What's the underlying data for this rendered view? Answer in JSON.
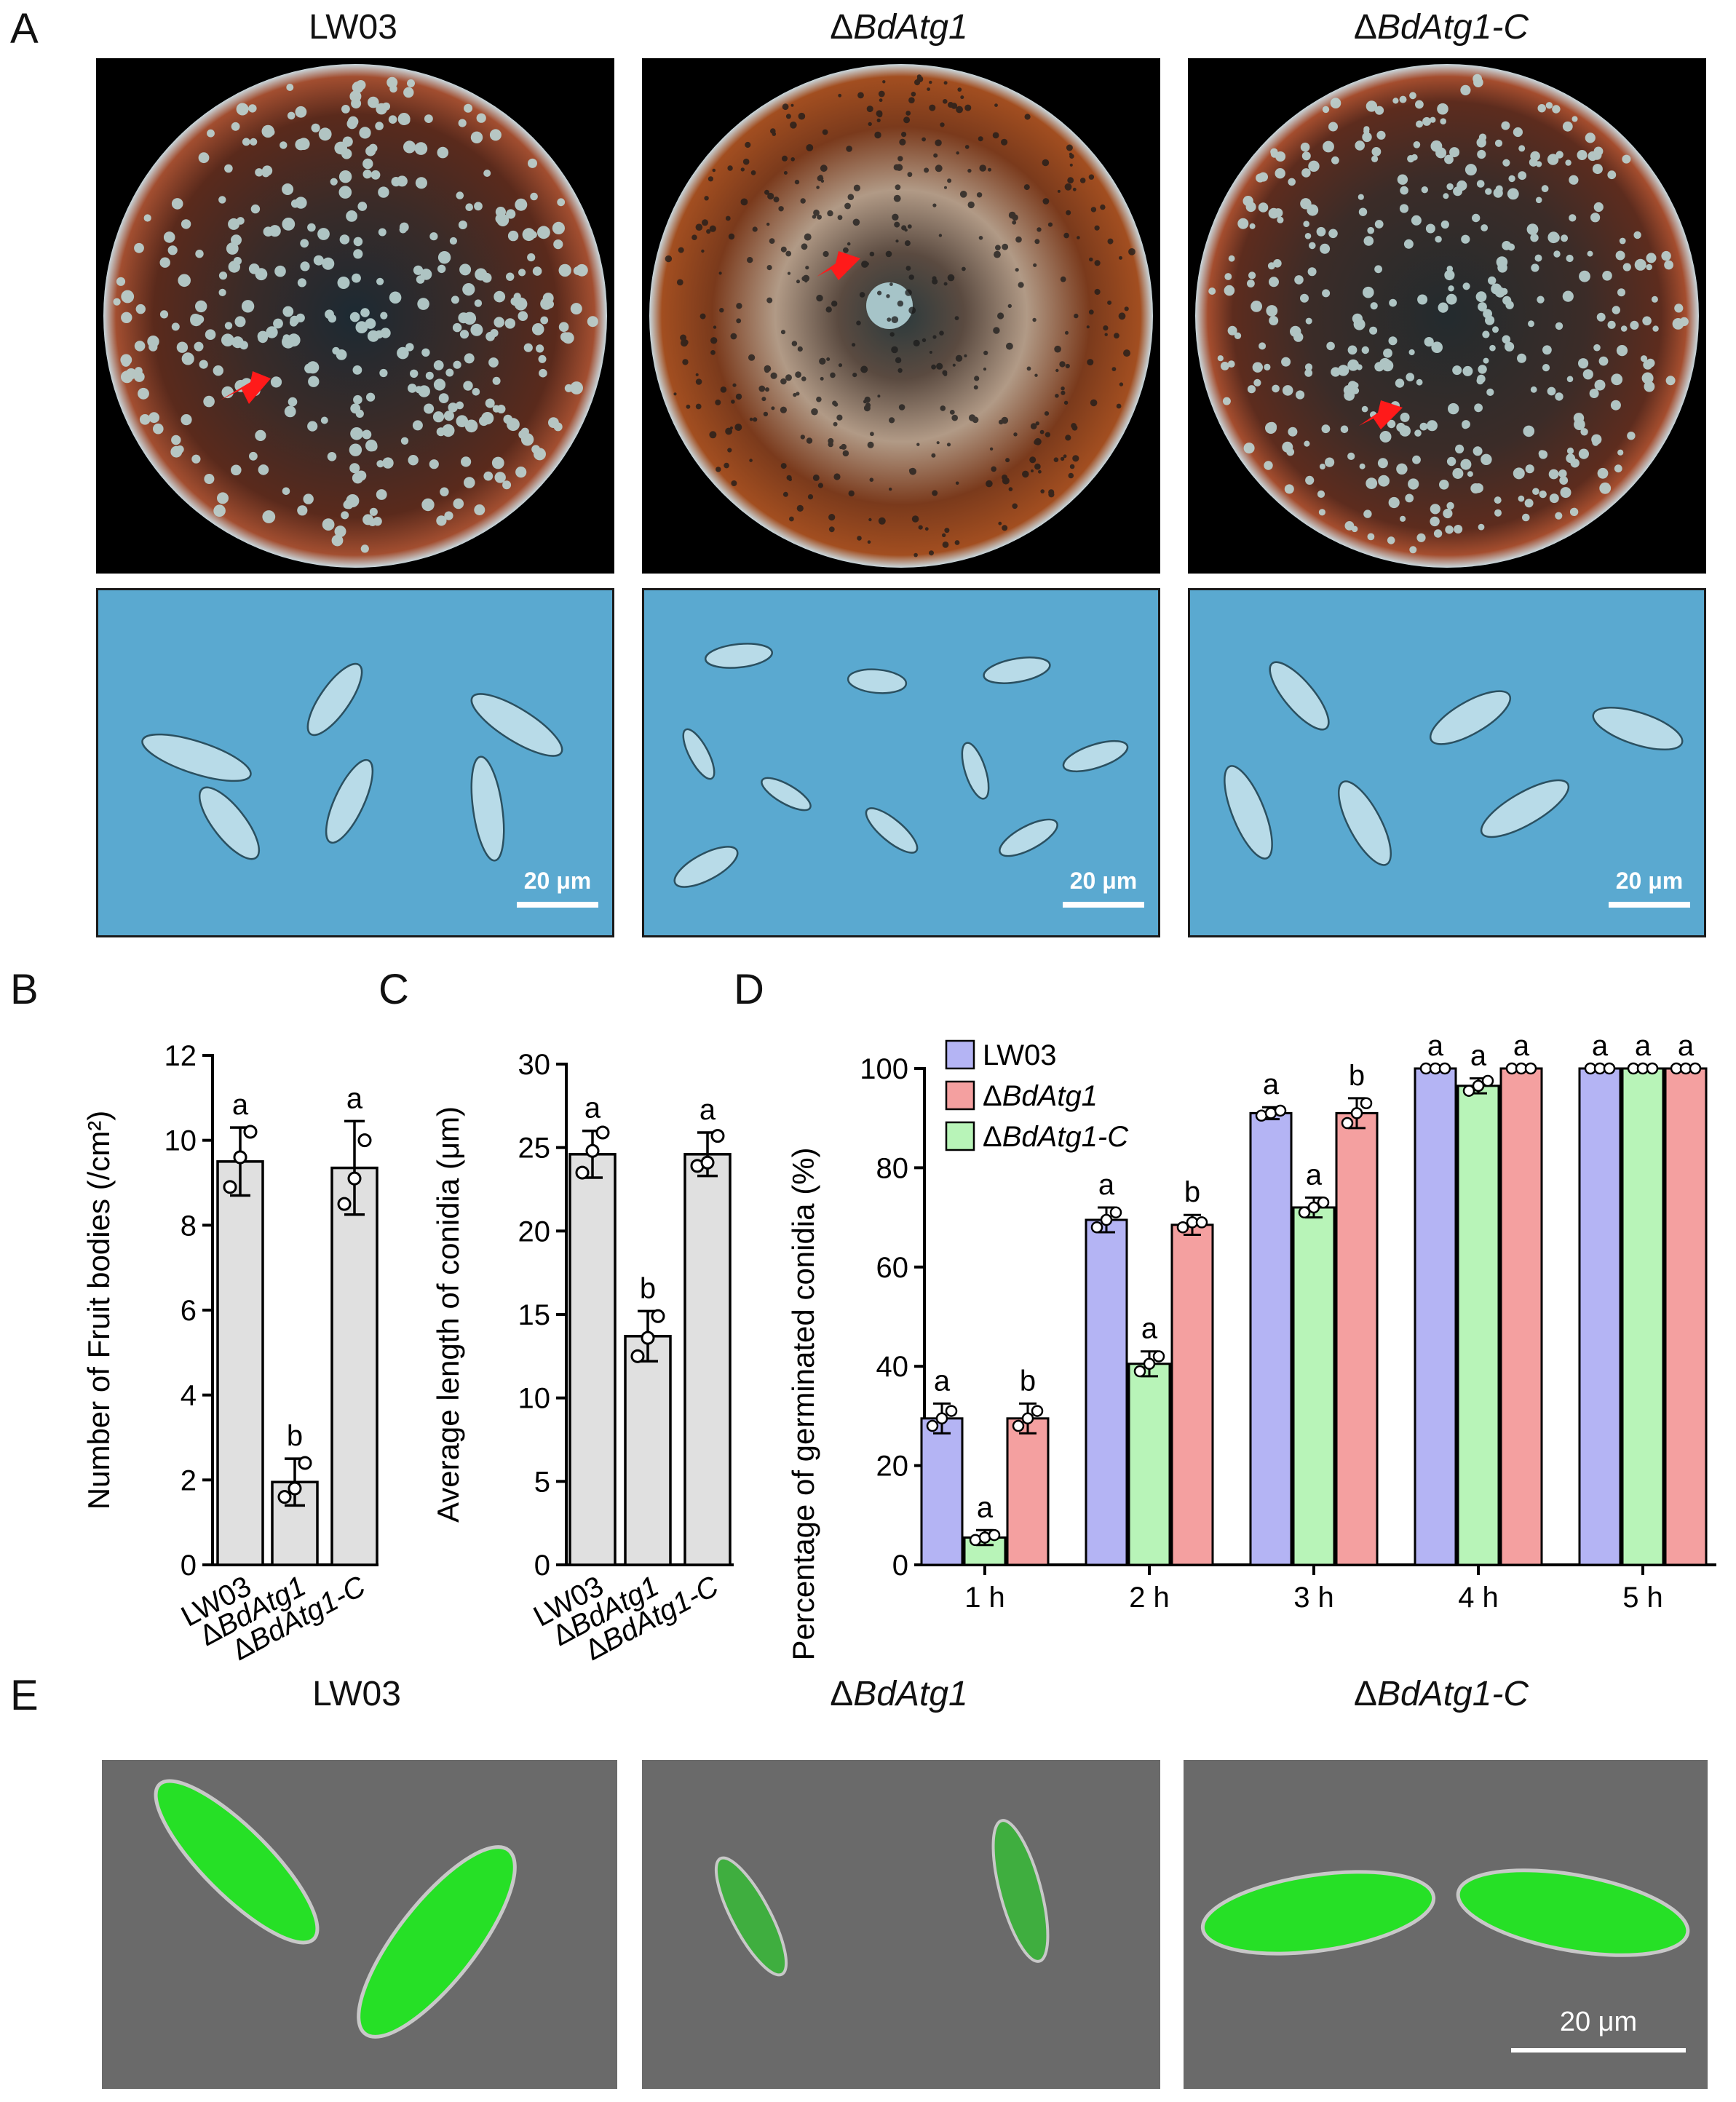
{
  "panel_labels": [
    "A",
    "B",
    "C",
    "D",
    "E"
  ],
  "strains": {
    "wt": "LW03",
    "mut_prefix": "Δ",
    "mut": "BdAtg1",
    "comp_prefix": "Δ",
    "comp": "BdAtg1-C"
  },
  "scale_bar": "20 μm",
  "colors": {
    "bar_gray": "#e0e0e0",
    "lw03": "#b4b4f4",
    "mut": "#f4a0a0",
    "comp": "#b8f4b8",
    "arrow": "#ff1a1a"
  },
  "chart_data": [
    {
      "id": "B",
      "type": "bar",
      "categories": [
        "LW03",
        "ΔBdAtg1",
        "ΔBdAtg1-C"
      ],
      "values": [
        9.5,
        1.95,
        9.35
      ],
      "errors": [
        0.8,
        0.55,
        1.1
      ],
      "points": [
        [
          8.9,
          9.6,
          10.2
        ],
        [
          1.6,
          1.8,
          2.4
        ],
        [
          8.5,
          9.1,
          10.0
        ]
      ],
      "significance": [
        "a",
        "b",
        "a"
      ],
      "ylabel": "Number of Fruit bodies (/cm²)",
      "ylim": [
        0,
        12
      ],
      "yticks": [
        0,
        2,
        4,
        6,
        8,
        10,
        12
      ]
    },
    {
      "id": "C",
      "type": "bar",
      "categories": [
        "LW03",
        "ΔBdAtg1",
        "ΔBdAtg1-C"
      ],
      "values": [
        24.6,
        13.7,
        24.6
      ],
      "errors": [
        1.4,
        1.5,
        1.3
      ],
      "points": [
        [
          23.5,
          24.8,
          25.9
        ],
        [
          12.5,
          13.6,
          14.9
        ],
        [
          23.9,
          24.1,
          25.7
        ]
      ],
      "significance": [
        "a",
        "b",
        "a"
      ],
      "ylabel": "Average length of conidia (μm)",
      "ylim": [
        0,
        30
      ],
      "yticks": [
        0,
        5,
        10,
        15,
        20,
        25,
        30
      ]
    },
    {
      "id": "D",
      "type": "bar",
      "categories": [
        "1 h",
        "2 h",
        "3 h",
        "4 h",
        "5 h"
      ],
      "series": [
        {
          "name": "LW03",
          "values": [
            29.5,
            69.5,
            91,
            100,
            100
          ],
          "errors": [
            3,
            2.5,
            1.2,
            0,
            0
          ],
          "points": [
            [
              28,
              29.5,
              31
            ],
            [
              68,
              69.5,
              71
            ],
            [
              90.5,
              91,
              91.5
            ],
            [
              100,
              100,
              100
            ],
            [
              100,
              100,
              100
            ]
          ]
        },
        {
          "name": "ΔBdAtg1",
          "values": [
            29.5,
            68.5,
            91,
            100,
            100
          ],
          "errors": [
            3,
            2,
            3,
            0,
            0
          ],
          "points": [
            [
              28,
              29.5,
              31
            ],
            [
              68,
              69,
              69
            ],
            [
              89,
              91,
              93
            ],
            [
              100,
              100,
              100
            ],
            [
              100,
              100,
              100
            ]
          ]
        },
        {
          "name": "ΔBdAtg1-C",
          "values": [
            5.5,
            40.5,
            72,
            96.5,
            100
          ],
          "errors": [
            1.5,
            2.5,
            2,
            1.5,
            0
          ],
          "points": [
            [
              5,
              5.5,
              6
            ],
            [
              39,
              40.5,
              42
            ],
            [
              71,
              72,
              73
            ],
            [
              95.5,
              96.5,
              97.5
            ],
            [
              100,
              100,
              100
            ]
          ]
        }
      ],
      "draw_order": [
        0,
        2,
        1
      ],
      "significance": [
        [
          "a",
          "b",
          "a"
        ],
        [
          "a",
          "b",
          "a"
        ],
        [
          "a",
          "b",
          "a"
        ],
        [
          "a",
          "a",
          "a"
        ],
        [
          "a",
          "a",
          "a"
        ]
      ],
      "ylabel": "Percentage of  germinated conidia (%)",
      "ylim": [
        0,
        100
      ],
      "yticks": [
        0,
        20,
        40,
        60,
        80,
        100
      ],
      "legend": "top-left"
    }
  ]
}
